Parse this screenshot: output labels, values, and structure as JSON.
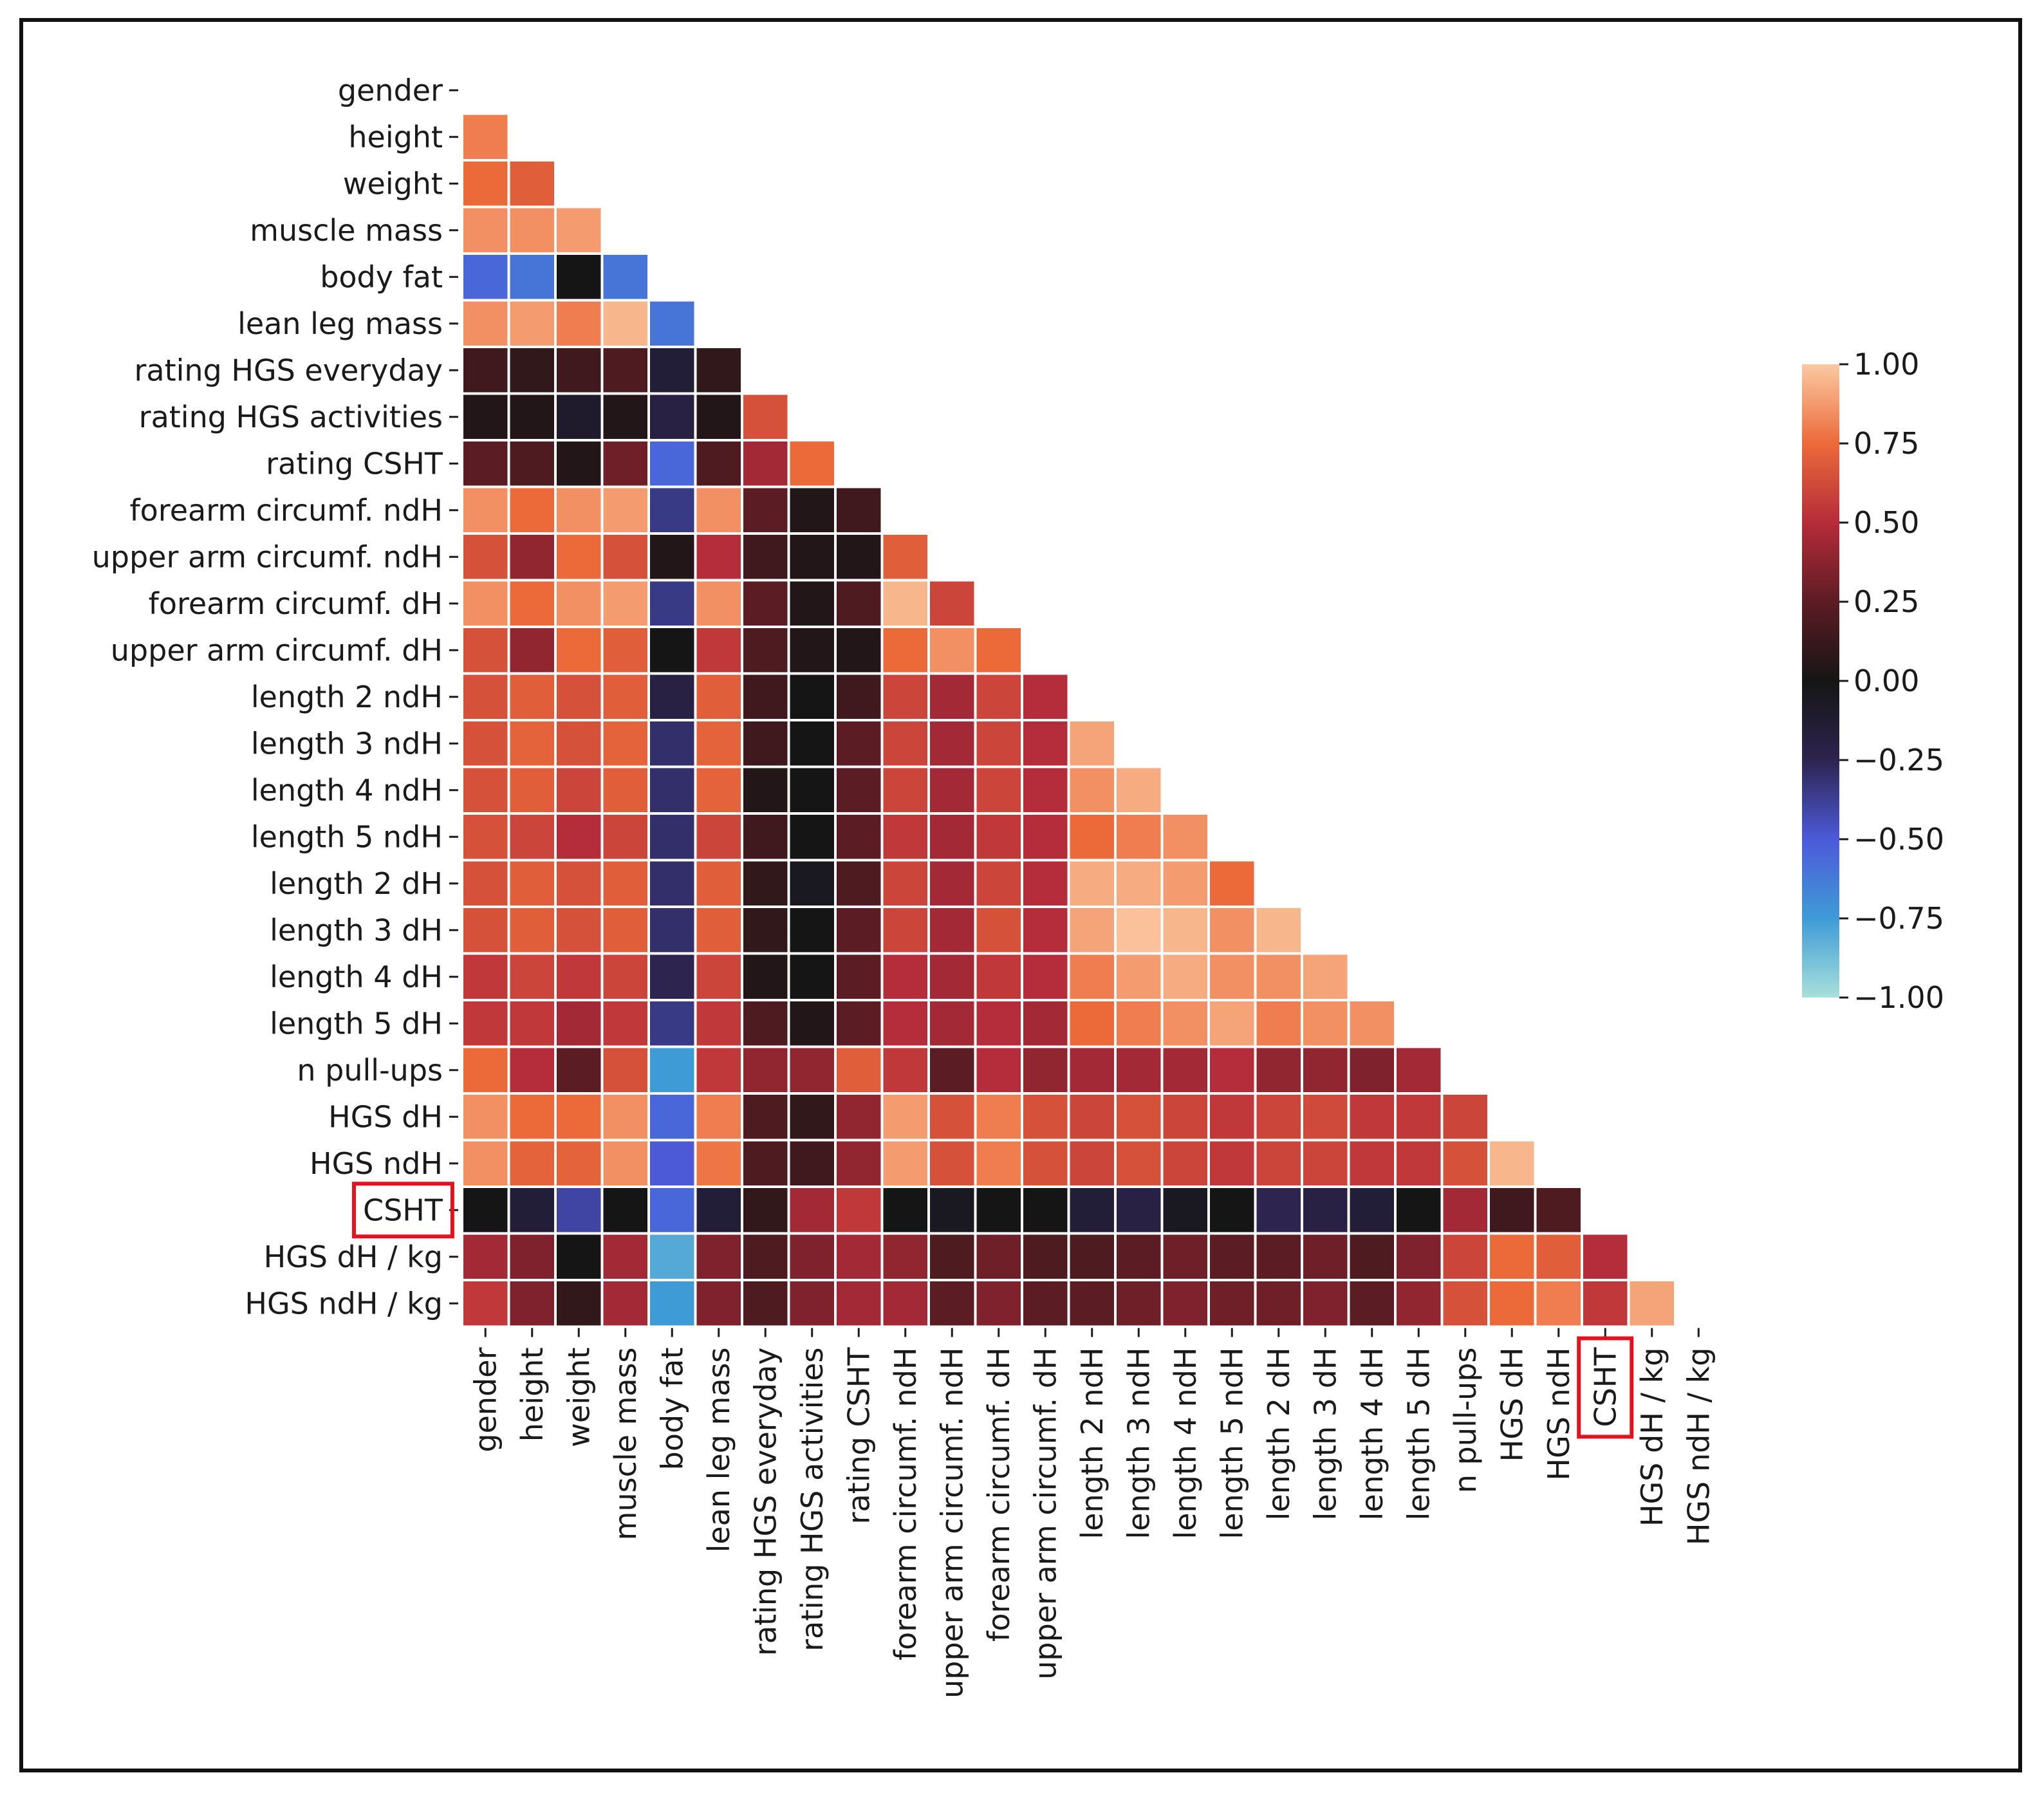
{
  "chart_data": {
    "type": "heatmap",
    "title": "",
    "xlabel": "",
    "ylabel": "",
    "mask": "upper-triangle-and-diagonal",
    "labels": [
      "gender",
      "height",
      "weight",
      "muscle mass",
      "body fat",
      "lean leg mass",
      "rating HGS everyday",
      "rating HGS activities",
      "rating CSHT",
      "forearm circumf. ndH",
      "upper arm circumf. ndH",
      "forearm circumf. dH",
      "upper arm circumf. dH",
      "length 2 ndH",
      "length 3 ndH",
      "length 4 ndH",
      "length 5 ndH",
      "length 2 dH",
      "length 3 dH",
      "length 4 dH",
      "length 5 dH",
      "n pull-ups",
      "HGS dH",
      "HGS ndH",
      "CSHT",
      "HGS dH / kg",
      "HGS ndH / kg"
    ],
    "highlighted_label": "CSHT",
    "colorbar": {
      "vmin": -1.0,
      "vmax": 1.0,
      "ticks": [
        "1.00",
        "0.75",
        "0.50",
        "0.25",
        "0.00",
        "−0.25",
        "−0.50",
        "−0.75",
        "−1.00"
      ],
      "colormap": "icefire"
    },
    "matrix": [
      [],
      [
        0.8
      ],
      [
        0.75,
        0.7
      ],
      [
        0.85,
        0.85,
        0.88
      ],
      [
        -0.55,
        -0.6,
        0.0,
        -0.6
      ],
      [
        0.85,
        0.88,
        0.8,
        0.95,
        -0.6
      ],
      [
        0.15,
        0.1,
        0.15,
        0.2,
        -0.15,
        0.1
      ],
      [
        0.05,
        0.05,
        -0.1,
        0.05,
        -0.2,
        0.05,
        0.65
      ],
      [
        0.25,
        0.2,
        0.05,
        0.3,
        -0.55,
        0.2,
        0.45,
        0.75
      ],
      [
        0.85,
        0.75,
        0.85,
        0.88,
        -0.35,
        0.85,
        0.25,
        0.05,
        0.15
      ],
      [
        0.65,
        0.4,
        0.75,
        0.65,
        0.05,
        0.5,
        0.15,
        0.05,
        0.05,
        0.7
      ],
      [
        0.85,
        0.75,
        0.85,
        0.88,
        -0.35,
        0.85,
        0.25,
        0.05,
        0.2,
        0.95,
        0.6
      ],
      [
        0.65,
        0.4,
        0.75,
        0.7,
        0.0,
        0.55,
        0.2,
        0.05,
        0.05,
        0.75,
        0.85,
        0.75
      ],
      [
        0.65,
        0.7,
        0.65,
        0.7,
        -0.2,
        0.7,
        0.15,
        0.0,
        0.15,
        0.6,
        0.45,
        0.6,
        0.5
      ],
      [
        0.65,
        0.72,
        0.65,
        0.72,
        -0.3,
        0.72,
        0.15,
        0.0,
        0.25,
        0.6,
        0.45,
        0.6,
        0.5,
        0.9
      ],
      [
        0.65,
        0.7,
        0.6,
        0.7,
        -0.3,
        0.72,
        0.05,
        0.0,
        0.25,
        0.6,
        0.45,
        0.6,
        0.5,
        0.85,
        0.92
      ],
      [
        0.65,
        0.6,
        0.5,
        0.6,
        -0.3,
        0.6,
        0.15,
        0.0,
        0.25,
        0.55,
        0.45,
        0.55,
        0.5,
        0.75,
        0.8,
        0.85
      ],
      [
        0.65,
        0.7,
        0.65,
        0.7,
        -0.3,
        0.7,
        0.1,
        -0.05,
        0.2,
        0.6,
        0.45,
        0.6,
        0.5,
        0.92,
        0.92,
        0.88,
        0.75
      ],
      [
        0.65,
        0.7,
        0.65,
        0.7,
        -0.3,
        0.7,
        0.1,
        0.0,
        0.25,
        0.6,
        0.45,
        0.65,
        0.5,
        0.9,
        0.98,
        0.95,
        0.85,
        0.95
      ],
      [
        0.55,
        0.6,
        0.55,
        0.6,
        -0.25,
        0.6,
        0.05,
        0.0,
        0.25,
        0.5,
        0.45,
        0.55,
        0.5,
        0.8,
        0.88,
        0.92,
        0.85,
        0.85,
        0.9
      ],
      [
        0.55,
        0.55,
        0.45,
        0.55,
        -0.35,
        0.55,
        0.2,
        0.05,
        0.25,
        0.5,
        0.45,
        0.5,
        0.45,
        0.75,
        0.8,
        0.85,
        0.9,
        0.8,
        0.85,
        0.85
      ],
      [
        0.75,
        0.5,
        0.25,
        0.65,
        -0.75,
        0.55,
        0.4,
        0.4,
        0.7,
        0.55,
        0.25,
        0.5,
        0.4,
        0.45,
        0.45,
        0.45,
        0.5,
        0.4,
        0.4,
        0.35,
        0.45
      ],
      [
        0.85,
        0.75,
        0.75,
        0.85,
        -0.55,
        0.8,
        0.2,
        0.1,
        0.4,
        0.88,
        0.65,
        0.8,
        0.65,
        0.6,
        0.65,
        0.6,
        0.55,
        0.6,
        0.62,
        0.55,
        0.55,
        0.6
      ],
      [
        0.85,
        0.72,
        0.72,
        0.85,
        -0.5,
        0.78,
        0.2,
        0.15,
        0.4,
        0.88,
        0.65,
        0.8,
        0.65,
        0.6,
        0.65,
        0.6,
        0.55,
        0.6,
        0.6,
        0.55,
        0.55,
        0.65,
        0.95
      ],
      [
        0.0,
        -0.15,
        -0.4,
        0.0,
        -0.55,
        -0.15,
        0.1,
        0.45,
        0.55,
        0.0,
        -0.05,
        0.0,
        0.0,
        -0.15,
        -0.2,
        -0.05,
        0.0,
        -0.25,
        -0.2,
        -0.15,
        0.0,
        0.45,
        0.15,
        0.2
      ],
      [
        0.45,
        0.35,
        0.0,
        0.45,
        -0.8,
        0.35,
        0.2,
        0.35,
        0.45,
        0.4,
        0.2,
        0.3,
        0.2,
        0.2,
        0.25,
        0.3,
        0.25,
        0.25,
        0.3,
        0.2,
        0.35,
        0.6,
        0.75,
        0.7,
        0.5
      ],
      [
        0.55,
        0.35,
        0.1,
        0.45,
        -0.75,
        0.35,
        0.2,
        0.35,
        0.45,
        0.45,
        0.25,
        0.35,
        0.25,
        0.25,
        0.3,
        0.35,
        0.3,
        0.3,
        0.35,
        0.25,
        0.4,
        0.65,
        0.75,
        0.8,
        0.55,
        0.9
      ]
    ]
  }
}
